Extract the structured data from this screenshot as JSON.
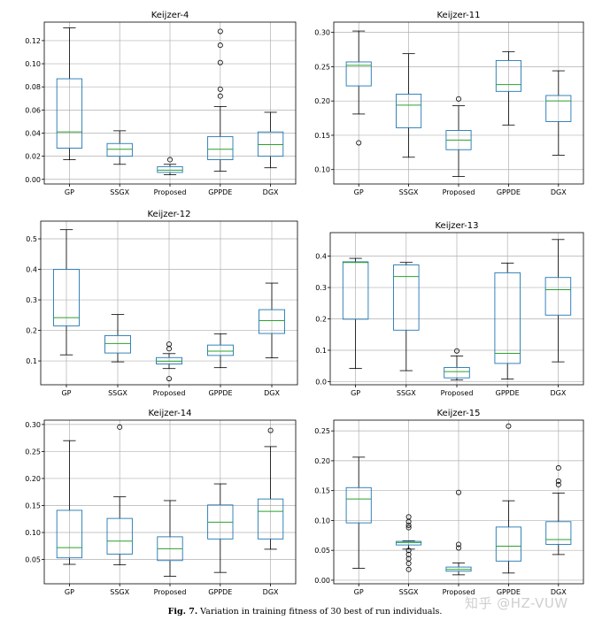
{
  "figure": {
    "caption_label": "Fig. 7.",
    "caption_text": "Variation in training fitness of 30 best of run individuals.",
    "watermark": "知乎 @HZ-VUW"
  },
  "colors": {
    "box": "#1f77b4",
    "median": "#2ca02c",
    "whisker": "#000000",
    "grid": "#b0b0b0"
  },
  "chart_data": [
    {
      "type": "box",
      "title": "Keijzer-4",
      "categories": [
        "GP",
        "SSGX",
        "Proposed",
        "GPPDE",
        "DGX"
      ],
      "ylim": [
        -0.004,
        0.136
      ],
      "yticks": [
        0.0,
        0.02,
        0.04,
        0.06,
        0.08,
        0.1,
        0.12
      ],
      "ytick_labels": [
        "0.00",
        "0.02",
        "0.04",
        "0.06",
        "0.08",
        "0.10",
        "0.12"
      ],
      "boxes": [
        {
          "whislo": 0.017,
          "q1": 0.027,
          "med": 0.041,
          "q3": 0.087,
          "whishi": 0.131,
          "fliers": []
        },
        {
          "whislo": 0.013,
          "q1": 0.02,
          "med": 0.026,
          "q3": 0.031,
          "whishi": 0.042,
          "fliers": []
        },
        {
          "whislo": 0.004,
          "q1": 0.006,
          "med": 0.008,
          "q3": 0.011,
          "whishi": 0.013,
          "fliers": [
            0.017
          ]
        },
        {
          "whislo": 0.007,
          "q1": 0.017,
          "med": 0.026,
          "q3": 0.037,
          "whishi": 0.063,
          "fliers": [
            0.072,
            0.078,
            0.101,
            0.116,
            0.128
          ]
        },
        {
          "whislo": 0.01,
          "q1": 0.02,
          "med": 0.03,
          "q3": 0.041,
          "whishi": 0.058,
          "fliers": []
        }
      ]
    },
    {
      "type": "box",
      "title": "Keijzer-11",
      "categories": [
        "GP",
        "SSGX",
        "Proposed",
        "GPPDE",
        "DGX"
      ],
      "ylim": [
        0.079,
        0.315
      ],
      "yticks": [
        0.1,
        0.15,
        0.2,
        0.25,
        0.3
      ],
      "ytick_labels": [
        "0.10",
        "0.15",
        "0.20",
        "0.25",
        "0.30"
      ],
      "boxes": [
        {
          "whislo": 0.181,
          "q1": 0.222,
          "med": 0.252,
          "q3": 0.257,
          "whishi": 0.302,
          "fliers": [
            0.139
          ]
        },
        {
          "whislo": 0.118,
          "q1": 0.161,
          "med": 0.194,
          "q3": 0.21,
          "whishi": 0.269,
          "fliers": []
        },
        {
          "whislo": 0.09,
          "q1": 0.129,
          "med": 0.143,
          "q3": 0.157,
          "whishi": 0.193,
          "fliers": [
            0.203
          ]
        },
        {
          "whislo": 0.165,
          "q1": 0.214,
          "med": 0.224,
          "q3": 0.259,
          "whishi": 0.272,
          "fliers": []
        },
        {
          "whislo": 0.121,
          "q1": 0.17,
          "med": 0.2,
          "q3": 0.208,
          "whishi": 0.244,
          "fliers": []
        }
      ]
    },
    {
      "type": "box",
      "title": "Keijzer-12",
      "categories": [
        "GP",
        "SSGX",
        "Proposed",
        "GPPDE",
        "DGX"
      ],
      "ylim": [
        0.022,
        0.558
      ],
      "yticks": [
        0.1,
        0.2,
        0.3,
        0.4,
        0.5
      ],
      "ytick_labels": [
        "0.1",
        "0.2",
        "0.3",
        "0.4",
        "0.5"
      ],
      "boxes": [
        {
          "whislo": 0.12,
          "q1": 0.215,
          "med": 0.242,
          "q3": 0.4,
          "whishi": 0.53,
          "fliers": []
        },
        {
          "whislo": 0.097,
          "q1": 0.126,
          "med": 0.157,
          "q3": 0.183,
          "whishi": 0.252,
          "fliers": []
        },
        {
          "whislo": 0.075,
          "q1": 0.09,
          "med": 0.099,
          "q3": 0.111,
          "whishi": 0.124,
          "fliers": [
            0.042,
            0.14,
            0.155
          ]
        },
        {
          "whislo": 0.078,
          "q1": 0.118,
          "med": 0.132,
          "q3": 0.152,
          "whishi": 0.189,
          "fliers": []
        },
        {
          "whislo": 0.11,
          "q1": 0.19,
          "med": 0.232,
          "q3": 0.268,
          "whishi": 0.355,
          "fliers": []
        }
      ]
    },
    {
      "type": "box",
      "title": "Keijzer-13",
      "categories": [
        "GP",
        "SSGX",
        "Proposed",
        "GPPDE",
        "DGX"
      ],
      "ylim": [
        -0.01,
        0.475
      ],
      "yticks": [
        0.0,
        0.1,
        0.2,
        0.3,
        0.4
      ],
      "ytick_labels": [
        "0.0",
        "0.1",
        "0.2",
        "0.3",
        "0.4"
      ],
      "boxes": [
        {
          "whislo": 0.042,
          "q1": 0.199,
          "med": 0.38,
          "q3": 0.382,
          "whishi": 0.393,
          "fliers": []
        },
        {
          "whislo": 0.035,
          "q1": 0.164,
          "med": 0.335,
          "q3": 0.372,
          "whishi": 0.38,
          "fliers": []
        },
        {
          "whislo": 0.005,
          "q1": 0.012,
          "med": 0.032,
          "q3": 0.045,
          "whishi": 0.082,
          "fliers": [
            0.098
          ]
        },
        {
          "whislo": 0.008,
          "q1": 0.058,
          "med": 0.09,
          "q3": 0.347,
          "whishi": 0.378,
          "fliers": []
        },
        {
          "whislo": 0.063,
          "q1": 0.212,
          "med": 0.293,
          "q3": 0.332,
          "whishi": 0.453,
          "fliers": []
        }
      ]
    },
    {
      "type": "box",
      "title": "Keijzer-14",
      "categories": [
        "GP",
        "SSGX",
        "Proposed",
        "GPPDE",
        "DGX"
      ],
      "ylim": [
        0.005,
        0.308
      ],
      "yticks": [
        0.05,
        0.1,
        0.15,
        0.2,
        0.25,
        0.3
      ],
      "ytick_labels": [
        "0.05",
        "0.10",
        "0.15",
        "0.20",
        "0.25",
        "0.30"
      ],
      "boxes": [
        {
          "whislo": 0.041,
          "q1": 0.053,
          "med": 0.072,
          "q3": 0.141,
          "whishi": 0.27,
          "fliers": []
        },
        {
          "whislo": 0.04,
          "q1": 0.06,
          "med": 0.084,
          "q3": 0.126,
          "whishi": 0.166,
          "fliers": [
            0.295
          ]
        },
        {
          "whislo": 0.019,
          "q1": 0.048,
          "med": 0.07,
          "q3": 0.092,
          "whishi": 0.159,
          "fliers": []
        },
        {
          "whislo": 0.026,
          "q1": 0.088,
          "med": 0.119,
          "q3": 0.151,
          "whishi": 0.19,
          "fliers": []
        },
        {
          "whislo": 0.069,
          "q1": 0.088,
          "med": 0.139,
          "q3": 0.162,
          "whishi": 0.259,
          "fliers": [
            0.289
          ]
        }
      ]
    },
    {
      "type": "box",
      "title": "Keijzer-15",
      "categories": [
        "GP",
        "SSGX",
        "Proposed",
        "GPPDE",
        "DGX"
      ],
      "ylim": [
        -0.006,
        0.268
      ],
      "yticks": [
        0.0,
        0.05,
        0.1,
        0.15,
        0.2,
        0.25
      ],
      "ytick_labels": [
        "0.00",
        "0.05",
        "0.10",
        "0.15",
        "0.20",
        "0.25"
      ],
      "boxes": [
        {
          "whislo": 0.02,
          "q1": 0.096,
          "med": 0.136,
          "q3": 0.155,
          "whishi": 0.206,
          "fliers": []
        },
        {
          "whislo": 0.052,
          "q1": 0.059,
          "med": 0.063,
          "q3": 0.065,
          "whishi": 0.066,
          "fliers": [
            0.018,
            0.028,
            0.036,
            0.043,
            0.05,
            0.088,
            0.092,
            0.098,
            0.106
          ]
        },
        {
          "whislo": 0.009,
          "q1": 0.015,
          "med": 0.018,
          "q3": 0.022,
          "whishi": 0.029,
          "fliers": [
            0.054,
            0.06,
            0.147
          ]
        },
        {
          "whislo": 0.012,
          "q1": 0.032,
          "med": 0.057,
          "q3": 0.089,
          "whishi": 0.133,
          "fliers": [
            0.258
          ]
        },
        {
          "whislo": 0.043,
          "q1": 0.06,
          "med": 0.068,
          "q3": 0.098,
          "whishi": 0.146,
          "fliers": [
            0.16,
            0.166,
            0.188
          ]
        }
      ]
    }
  ]
}
